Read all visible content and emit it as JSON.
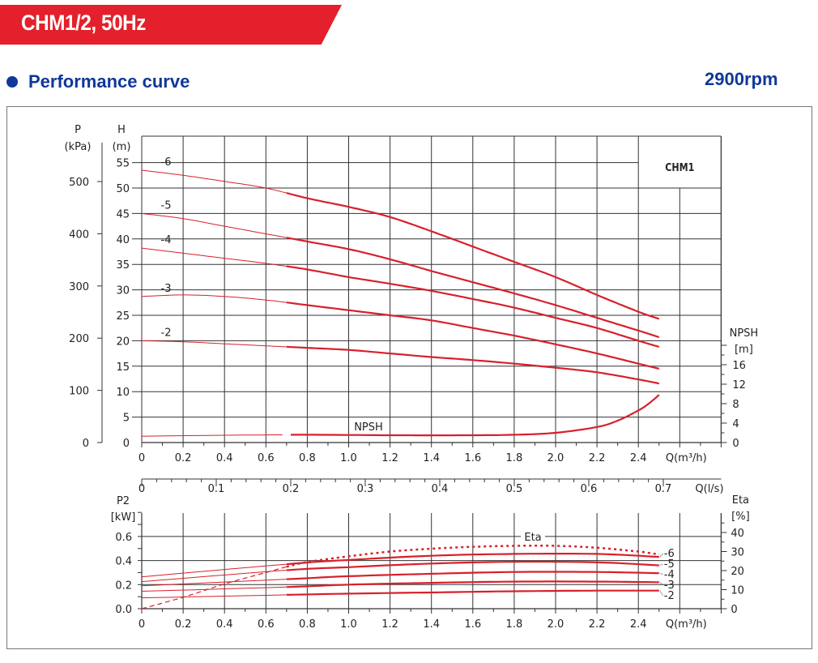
{
  "header": {
    "banner": "CHM1/2, 50Hz",
    "section_title": "Performance curve",
    "speed": "2900rpm"
  },
  "colors": {
    "banner": "#e3202b",
    "title": "#10389a",
    "curve": "#d8202b",
    "grid": "#333333"
  },
  "chart_data": [
    {
      "type": "line",
      "title": "CHM1",
      "xlabel": "Q(m³/h)",
      "x2label": "Q(l/s)",
      "ylabel": "H",
      "yunit": "(m)",
      "y2label": "P",
      "y2unit": "(kPa)",
      "y3label": "NPSH",
      "y3unit": "[m]",
      "xlim": [
        0,
        2.8
      ],
      "ylim": [
        0,
        60
      ],
      "x_ticks": [
        "0",
        "0.2",
        "0.4",
        "0.6",
        "0.8",
        "1.0",
        "1.2",
        "1.4",
        "1.6",
        "1.8",
        "2.0",
        "2.2",
        "2.4"
      ],
      "x2_ticks": [
        "0",
        "0.1",
        "0.2",
        "0.3",
        "0.4",
        "0.5",
        "0.6",
        "0.7"
      ],
      "y_ticks": [
        "0",
        "5",
        "10",
        "15",
        "20",
        "25",
        "30",
        "35",
        "40",
        "45",
        "50",
        "55"
      ],
      "p_ticks": [
        "0",
        "100",
        "200",
        "300",
        "400",
        "500"
      ],
      "npsh_ticks": [
        "0",
        "4",
        "8",
        "12",
        "16"
      ],
      "grid": true,
      "x": [
        0,
        0.2,
        0.4,
        0.6,
        0.8,
        1.0,
        1.2,
        1.4,
        1.6,
        1.8,
        2.0,
        2.2,
        2.4,
        2.5
      ],
      "series": [
        {
          "name": "-6",
          "values": [
            53.5,
            52.5,
            51.3,
            50,
            48,
            46.3,
            44.3,
            41.5,
            38.5,
            35.5,
            32.5,
            29,
            25.7,
            24.3
          ]
        },
        {
          "name": "-5",
          "values": [
            45,
            44,
            42.5,
            41,
            39.5,
            38,
            36,
            33.7,
            31.5,
            29.3,
            27,
            24.5,
            22,
            20.7
          ]
        },
        {
          "name": "-4",
          "values": [
            38.2,
            37.2,
            36.2,
            35.2,
            34,
            32.5,
            31.2,
            29.8,
            28.2,
            26.5,
            24.5,
            22.5,
            20,
            18.8
          ]
        },
        {
          "name": "-3",
          "values": [
            28.7,
            29,
            28.7,
            28,
            27,
            26,
            25,
            24,
            22.5,
            21,
            19.3,
            17.5,
            15.5,
            14.5
          ]
        },
        {
          "name": "-2",
          "values": [
            20,
            19.8,
            19.4,
            19,
            18.6,
            18.2,
            17.5,
            16.8,
            16.2,
            15.5,
            14.7,
            13.8,
            12.4,
            11.6
          ]
        }
      ],
      "npsh": {
        "name": "NPSH",
        "x": [
          0,
          0.4,
          0.8,
          1.2,
          1.6,
          1.8,
          2.0,
          2.2,
          2.3,
          2.4,
          2.45,
          2.5
        ],
        "values": [
          1.3,
          1.5,
          1.6,
          1.5,
          1.5,
          1.6,
          2.0,
          3.2,
          4.5,
          6.6,
          8,
          9.8
        ]
      }
    },
    {
      "type": "line",
      "xlabel": "Q(m³/h)",
      "ylabel": "P2",
      "yunit": "[kW]",
      "y2label": "Eta",
      "y2unit": "[%]",
      "xlim": [
        0,
        2.8
      ],
      "ylim": [
        0,
        0.8
      ],
      "y2lim": [
        0,
        50
      ],
      "x_ticks": [
        "0",
        "0.2",
        "0.4",
        "0.6",
        "0.8",
        "1.0",
        "1.2",
        "1.4",
        "1.6",
        "1.8",
        "2.0",
        "2.2",
        "2.4"
      ],
      "y_ticks": [
        "0.0",
        "0.2",
        "0.4",
        "0.6"
      ],
      "eta_ticks": [
        "0",
        "10",
        "20",
        "30",
        "40"
      ],
      "x": [
        0,
        0.7,
        1.0,
        1.4,
        1.8,
        2.2,
        2.5
      ],
      "series": [
        {
          "name": "-6",
          "values": [
            0.265,
            0.37,
            0.405,
            0.44,
            0.455,
            0.455,
            0.43
          ]
        },
        {
          "name": "-5",
          "values": [
            0.225,
            0.32,
            0.345,
            0.375,
            0.39,
            0.385,
            0.36
          ]
        },
        {
          "name": "-4",
          "values": [
            0.19,
            0.245,
            0.27,
            0.29,
            0.305,
            0.305,
            0.295
          ]
        },
        {
          "name": "-3",
          "values": [
            0.145,
            0.18,
            0.2,
            0.215,
            0.225,
            0.225,
            0.22
          ]
        },
        {
          "name": "-2",
          "values": [
            0.09,
            0.115,
            0.125,
            0.135,
            0.145,
            0.15,
            0.15
          ]
        }
      ],
      "eta": {
        "name": "Eta",
        "x": [
          0,
          0.2,
          0.4,
          0.6,
          0.7,
          0.8,
          1.0,
          1.2,
          1.4,
          1.6,
          1.8,
          2.0,
          2.2,
          2.4,
          2.5
        ],
        "values": [
          0,
          6,
          13,
          19,
          22,
          24.5,
          27.5,
          30,
          31.5,
          32.5,
          33,
          33,
          32,
          30,
          28.5
        ]
      }
    }
  ]
}
